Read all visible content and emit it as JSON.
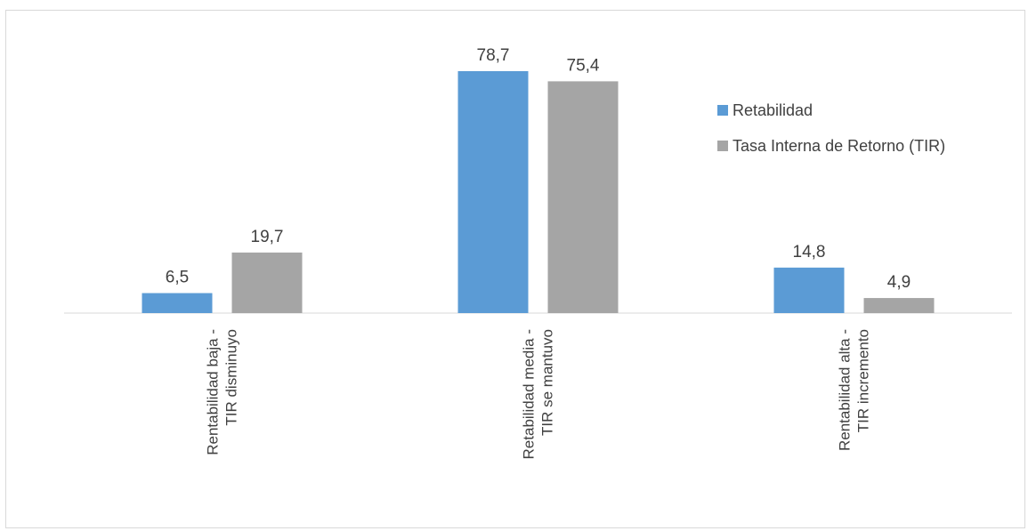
{
  "chart_data": {
    "type": "bar",
    "categories": [
      [
        "Rentabilidad baja -",
        "TIR disminuyo"
      ],
      [
        "Retabilidad media  -",
        "TIR se mantuvo"
      ],
      [
        "Rentabilidad alta -",
        "TIR incremento"
      ]
    ],
    "series": [
      {
        "name": "Retabilidad",
        "values": [
          6.5,
          78.7,
          14.8
        ],
        "labels": [
          "6,5",
          "78,7",
          "14,8"
        ],
        "color": "#5b9bd5"
      },
      {
        "name": "Tasa Interna de Retorno (TIR)",
        "values": [
          19.7,
          75.4,
          4.9
        ],
        "labels": [
          "19,7",
          "75,4",
          "4,9"
        ],
        "color": "#a5a5a5"
      }
    ],
    "ylim": [
      0,
      80
    ],
    "grid": false,
    "legend_position": "right",
    "axis_color": "#d9d9d9"
  }
}
